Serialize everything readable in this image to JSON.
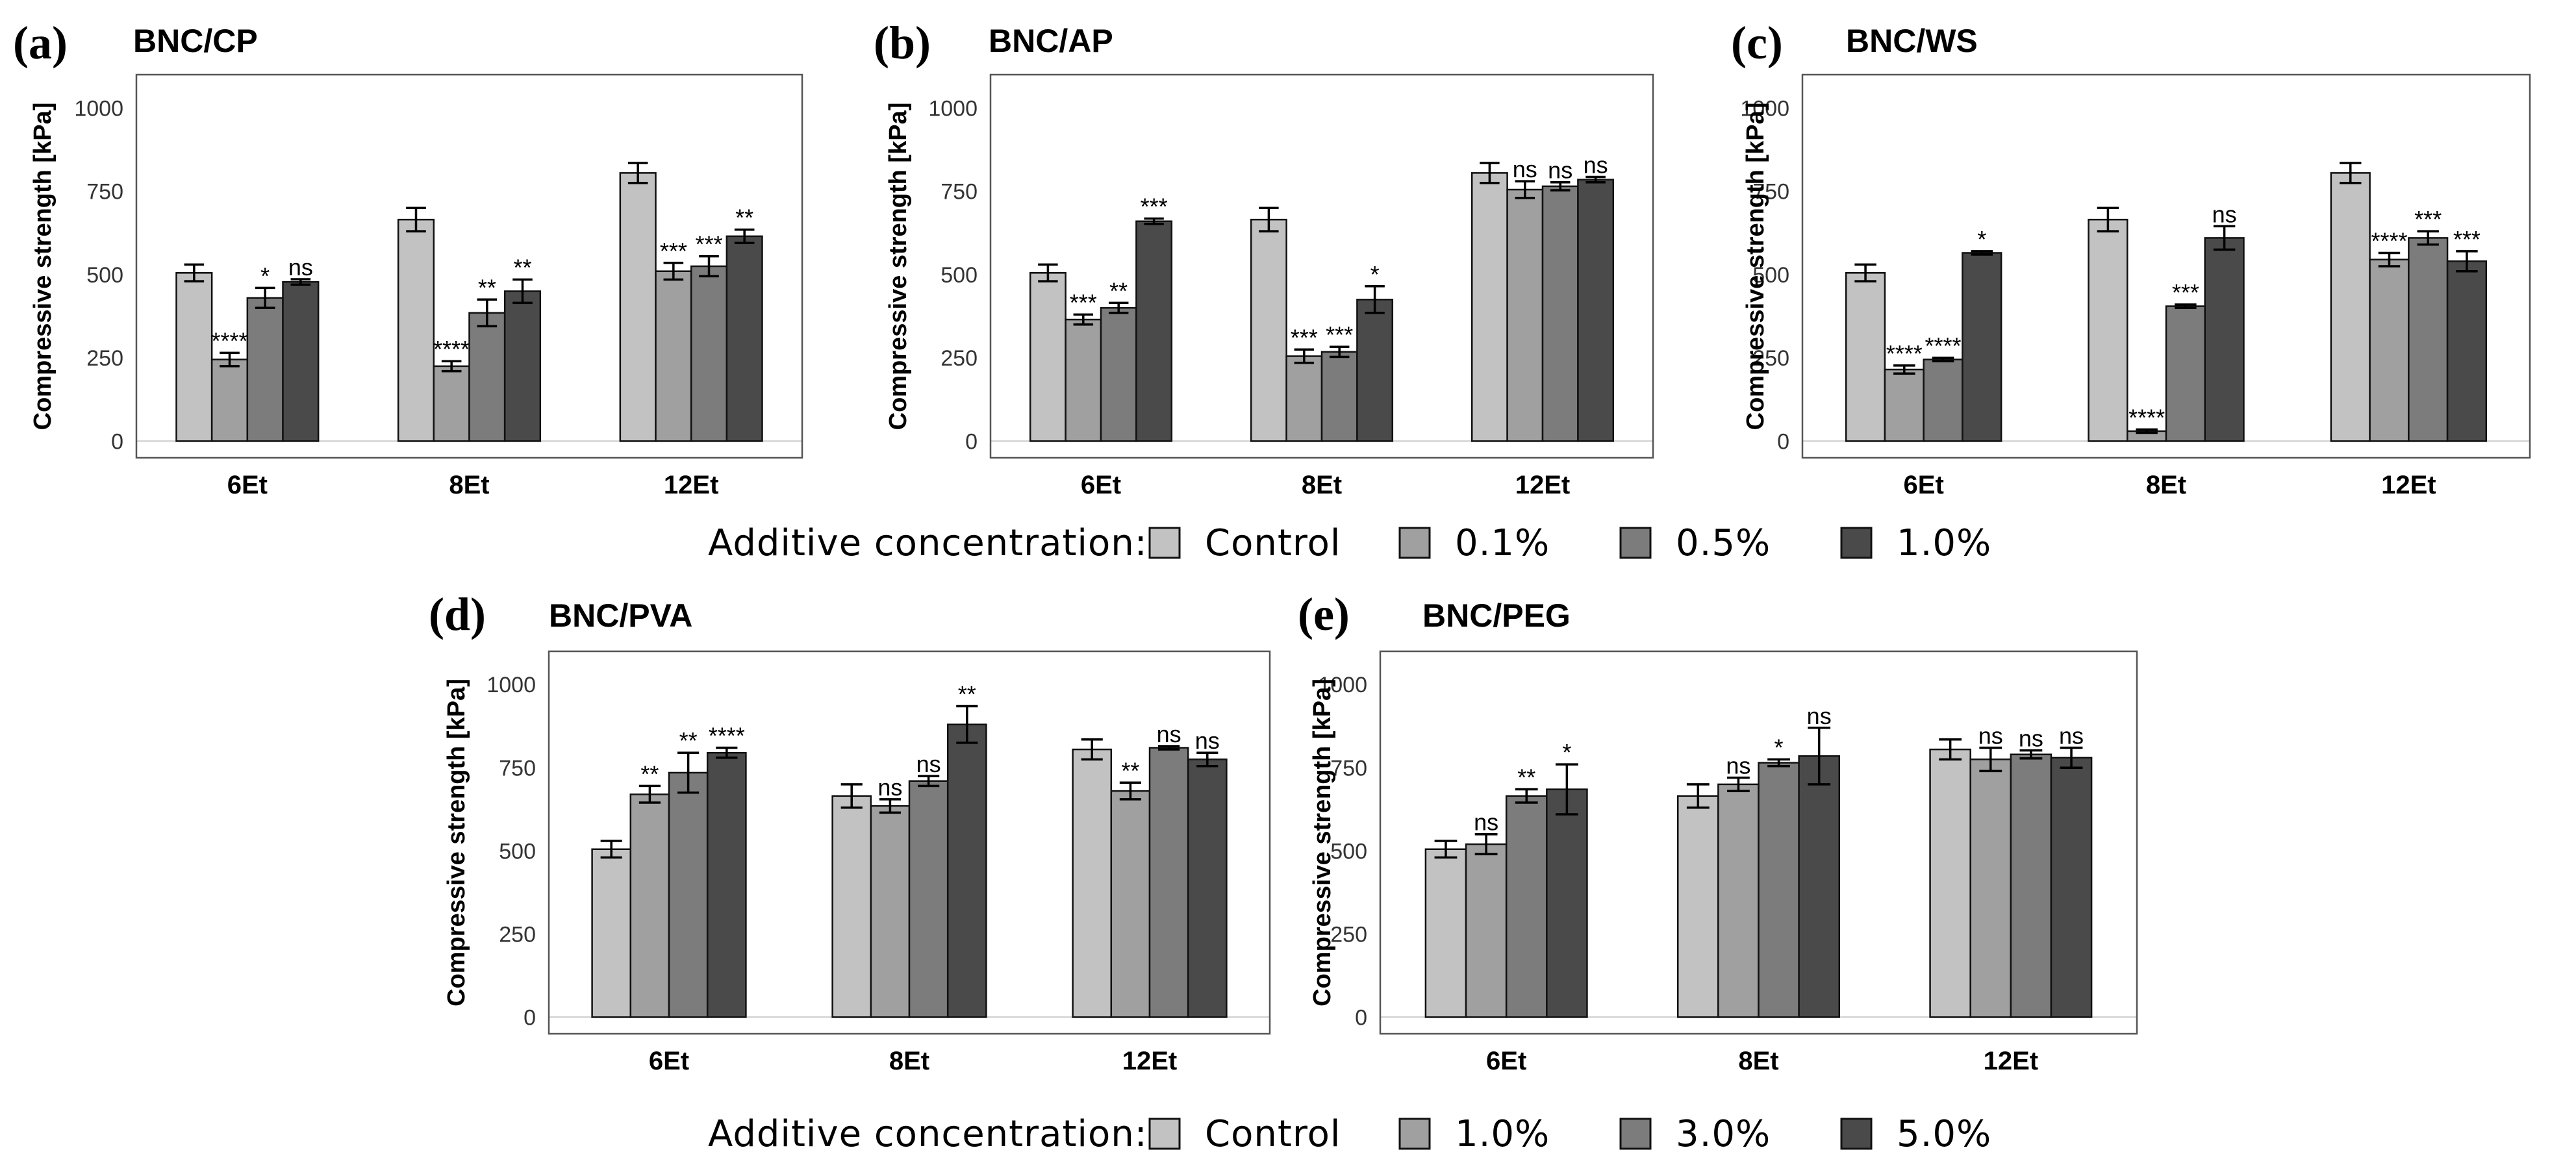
{
  "chart_data": [
    {
      "type": "bar",
      "letter": "(a)",
      "title": "BNC/CP",
      "ylabel": "Compressive strength [kPa]",
      "xlabel": "",
      "ylim": [
        -50,
        1100
      ],
      "yticks": [
        0,
        250,
        500,
        750,
        1000
      ],
      "ytick_labels": [
        "0",
        "250",
        "500",
        "750",
        "1000"
      ],
      "categories": [
        "6Et",
        "8Et",
        "12Et"
      ],
      "series": [
        {
          "name": "Control",
          "values": [
            505,
            665,
            805
          ],
          "errors": [
            25,
            35,
            30
          ],
          "sig": [
            "",
            "",
            ""
          ]
        },
        {
          "name": "0.1%",
          "values": [
            245,
            225,
            510
          ],
          "errors": [
            20,
            15,
            25
          ],
          "sig": [
            "****",
            "****",
            "***"
          ]
        },
        {
          "name": "0.5%",
          "values": [
            430,
            385,
            525
          ],
          "errors": [
            30,
            40,
            30
          ],
          "sig": [
            "*",
            "**",
            "***"
          ]
        },
        {
          "name": "1.0%",
          "values": [
            478,
            450,
            615
          ],
          "errors": [
            8,
            35,
            20
          ],
          "sig": [
            "ns",
            "**",
            "**"
          ]
        }
      ]
    },
    {
      "type": "bar",
      "letter": "(b)",
      "title": "BNC/AP",
      "ylabel": "Compressive strength [kPa]",
      "xlabel": "",
      "ylim": [
        -50,
        1100
      ],
      "yticks": [
        0,
        250,
        500,
        750,
        1000
      ],
      "ytick_labels": [
        "0",
        "250",
        "500",
        "750",
        "1000"
      ],
      "categories": [
        "6Et",
        "8Et",
        "12Et"
      ],
      "series": [
        {
          "name": "Control",
          "values": [
            505,
            665,
            805
          ],
          "errors": [
            25,
            35,
            30
          ],
          "sig": [
            "",
            "",
            ""
          ]
        },
        {
          "name": "0.1%",
          "values": [
            365,
            255,
            755
          ],
          "errors": [
            15,
            20,
            25
          ],
          "sig": [
            "***",
            "***",
            "ns"
          ]
        },
        {
          "name": "0.5%",
          "values": [
            400,
            268,
            765
          ],
          "errors": [
            15,
            15,
            12
          ],
          "sig": [
            "**",
            "***",
            "ns"
          ]
        },
        {
          "name": "1.0%",
          "values": [
            660,
            425,
            785
          ],
          "errors": [
            8,
            40,
            8
          ],
          "sig": [
            "***",
            "*",
            "ns"
          ]
        }
      ]
    },
    {
      "type": "bar",
      "letter": "(c)",
      "title": "BNC/WS",
      "ylabel": "Compressive strength [kPa]",
      "xlabel": "",
      "ylim": [
        -50,
        1100
      ],
      "yticks": [
        0,
        250,
        500,
        750,
        1000
      ],
      "ytick_labels": [
        "0",
        "250",
        "500",
        "750",
        "1000"
      ],
      "categories": [
        "6Et",
        "8Et",
        "12Et"
      ],
      "series": [
        {
          "name": "Control",
          "values": [
            505,
            665,
            805
          ],
          "errors": [
            25,
            35,
            30
          ],
          "sig": [
            "",
            "",
            ""
          ]
        },
        {
          "name": "0.1%",
          "values": [
            215,
            30,
            545
          ],
          "errors": [
            12,
            5,
            20
          ],
          "sig": [
            "****",
            "****",
            "****"
          ]
        },
        {
          "name": "0.5%",
          "values": [
            245,
            405,
            610
          ],
          "errors": [
            5,
            5,
            20
          ],
          "sig": [
            "****",
            "***",
            "***"
          ]
        },
        {
          "name": "1.0%",
          "values": [
            565,
            610,
            540
          ],
          "errors": [
            5,
            35,
            30
          ],
          "sig": [
            "*",
            "ns",
            "***"
          ]
        }
      ]
    },
    {
      "type": "bar",
      "letter": "(d)",
      "title": "BNC/PVA",
      "ylabel": "Compressive strength [kPa]",
      "xlabel": "",
      "ylim": [
        -50,
        1100
      ],
      "yticks": [
        0,
        250,
        500,
        750,
        1000
      ],
      "ytick_labels": [
        "0",
        "250",
        "500",
        "750",
        "1000"
      ],
      "categories": [
        "6Et",
        "8Et",
        "12Et"
      ],
      "series": [
        {
          "name": "Control",
          "values": [
            505,
            665,
            805
          ],
          "errors": [
            25,
            35,
            30
          ],
          "sig": [
            "",
            "",
            ""
          ]
        },
        {
          "name": "1.0%",
          "values": [
            670,
            635,
            680
          ],
          "errors": [
            25,
            20,
            25
          ],
          "sig": [
            "**",
            "ns",
            "**"
          ]
        },
        {
          "name": "3.0%",
          "values": [
            735,
            710,
            810
          ],
          "errors": [
            60,
            15,
            5
          ],
          "sig": [
            "**",
            "ns",
            "ns"
          ]
        },
        {
          "name": "5.0%",
          "values": [
            795,
            880,
            775
          ],
          "errors": [
            15,
            55,
            20
          ],
          "sig": [
            "****",
            "**",
            "ns"
          ]
        }
      ]
    },
    {
      "type": "bar",
      "letter": "(e)",
      "title": "BNC/PEG",
      "ylabel": "Compressive strength [kPa]",
      "xlabel": "",
      "ylim": [
        -50,
        1100
      ],
      "yticks": [
        0,
        250,
        500,
        750,
        1000
      ],
      "ytick_labels": [
        "0",
        "250",
        "500",
        "750",
        "1000"
      ],
      "categories": [
        "6Et",
        "8Et",
        "12Et"
      ],
      "series": [
        {
          "name": "Control",
          "values": [
            505,
            665,
            805
          ],
          "errors": [
            25,
            35,
            30
          ],
          "sig": [
            "",
            "",
            ""
          ]
        },
        {
          "name": "1.0%",
          "values": [
            520,
            700,
            775
          ],
          "errors": [
            30,
            20,
            35
          ],
          "sig": [
            "ns",
            "ns",
            "ns"
          ]
        },
        {
          "name": "3.0%",
          "values": [
            665,
            765,
            790
          ],
          "errors": [
            20,
            10,
            12
          ],
          "sig": [
            "**",
            "*",
            "ns"
          ]
        },
        {
          "name": "5.0%",
          "values": [
            685,
            785,
            780
          ],
          "errors": [
            75,
            85,
            30
          ],
          "sig": [
            "*",
            "ns",
            "ns"
          ]
        }
      ]
    }
  ],
  "legends": [
    {
      "label": "Additive concentration:",
      "items": [
        "Control",
        "0.1%",
        "0.5%",
        "1.0%"
      ]
    },
    {
      "label": "Additive concentration:",
      "items": [
        "Control",
        "1.0%",
        "3.0%",
        "5.0%"
      ]
    }
  ],
  "colors": {
    "series": [
      "#c2c2c2",
      "#a0a0a0",
      "#7c7c7c",
      "#4a4a4a"
    ],
    "zero_line": "#d9d9d9",
    "frame": "#555555"
  }
}
